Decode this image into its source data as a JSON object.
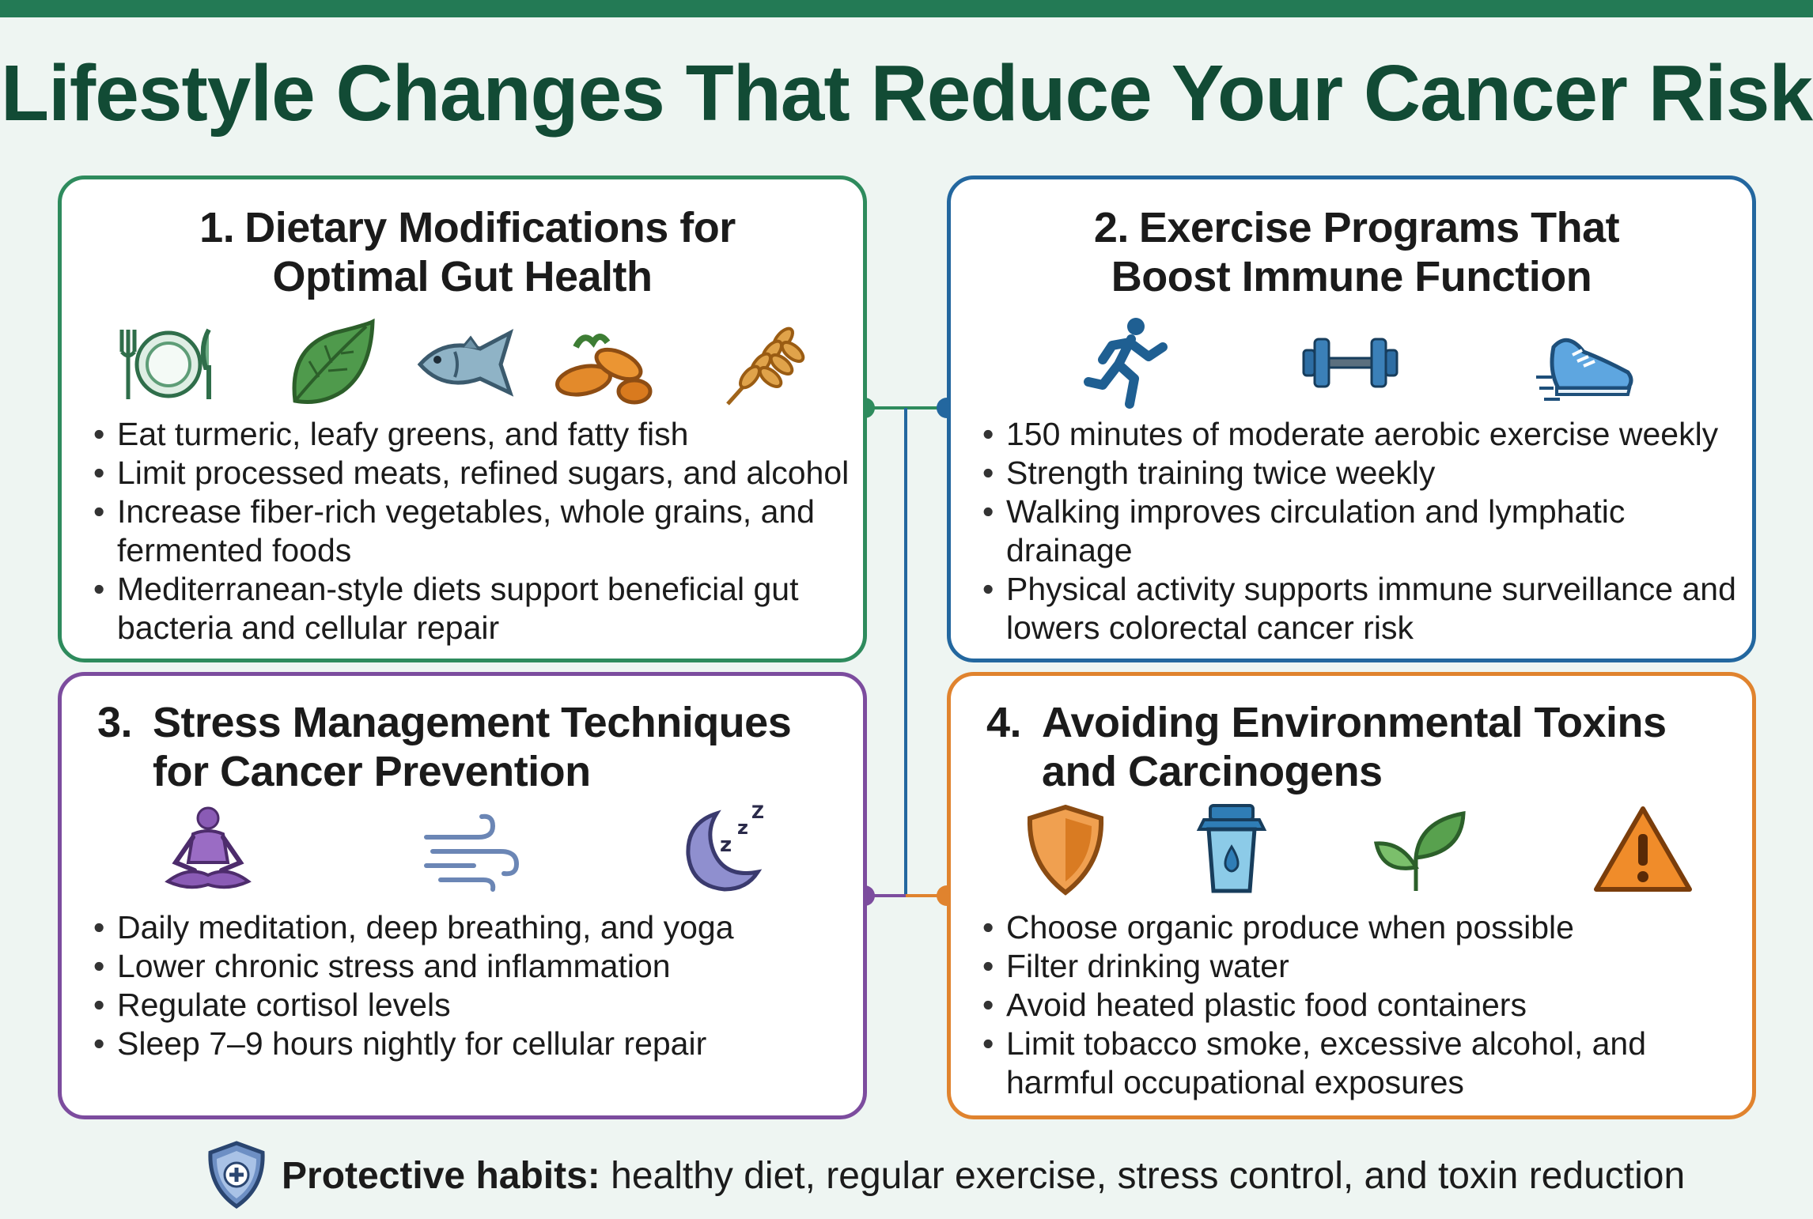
{
  "title": "Lifestyle Changes That Reduce Your Cancer Risk",
  "colors": {
    "header_bar": "#237a55",
    "title": "#124b35",
    "card1": "#2e8b5d",
    "card2": "#23679f",
    "card3": "#7c4c9e",
    "card4": "#e0832e"
  },
  "cards": [
    {
      "number": "1.",
      "title_line1": "Dietary Modifications for",
      "title_line2": "Optimal Gut Health",
      "icons": [
        "plate-fork-knife-icon",
        "leaf-icon",
        "fish-icon",
        "turmeric-root-icon",
        "wheat-icon"
      ],
      "bullets": [
        "Eat turmeric, leafy greens, and fatty fish",
        "Limit processed meats, refined sugars, and alcohol",
        "Increase fiber-rich vegetables, whole grains, and fermented foods",
        "Mediterranean-style diets support beneficial gut bacteria and cellular repair"
      ]
    },
    {
      "number": "2.",
      "title_line1": "Exercise Programs That",
      "title_line2": "Boost Immune Function",
      "icons": [
        "runner-icon",
        "dumbbell-icon",
        "sneaker-icon"
      ],
      "bullets": [
        "150 minutes of moderate aerobic exercise weekly",
        "Strength training twice weekly",
        "Walking improves circulation and lymphatic drainage",
        "Physical activity supports immune surveillance and lowers colorectal cancer risk"
      ]
    },
    {
      "number": "3.",
      "title_line1": "Stress Management Techniques",
      "title_line2": "for Cancer Prevention",
      "icons": [
        "meditation-icon",
        "wind-breath-icon",
        "moon-sleep-icon"
      ],
      "bullets": [
        "Daily meditation, deep breathing, and yoga",
        "Lower chronic stress and inflammation",
        "Regulate cortisol levels",
        "Sleep 7–9 hours nightly for cellular repair"
      ]
    },
    {
      "number": "4.",
      "title_line1": "Avoiding Environmental Toxins",
      "title_line2": "and Carcinogens",
      "icons": [
        "shield-icon",
        "water-filter-icon",
        "sprout-leaves-icon",
        "warning-triangle-icon"
      ],
      "bullets": [
        "Choose organic produce when possible",
        "Filter drinking water",
        "Avoid heated plastic food containers",
        "Limit tobacco smoke, excessive alcohol, and harmful occupational exposures"
      ]
    }
  ],
  "footer": {
    "label": "Protective habits:",
    "text": " healthy diet, regular exercise, stress control, and toxin reduction"
  }
}
